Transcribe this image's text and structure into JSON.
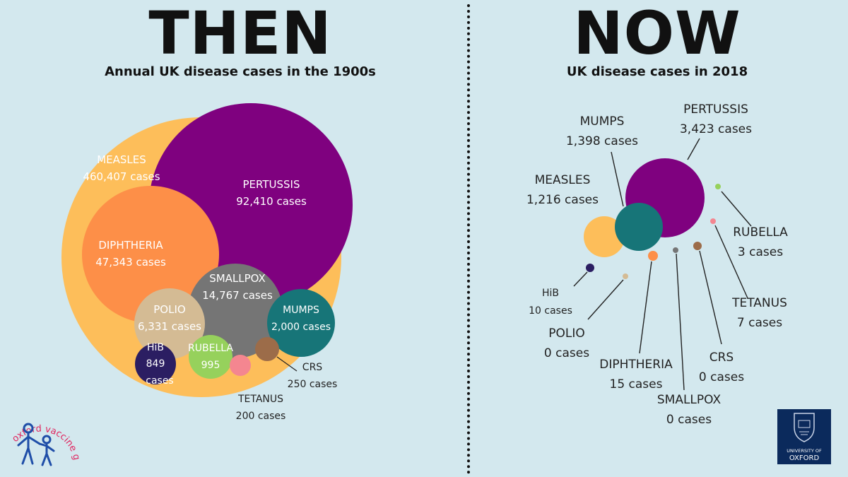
{
  "then": {
    "heading": "THEN",
    "subtitle": "Annual UK disease cases in the 1900s"
  },
  "now": {
    "heading": "NOW",
    "subtitle": "UK disease cases in 2018"
  },
  "logos": {
    "ovg_text": "oxford vaccine group",
    "oxford_line1": "UNIVERSITY OF",
    "oxford_line2": "OXFORD"
  },
  "colors": {
    "background": "#d3e8ee",
    "measles": "#fdbe5a",
    "pertussis": "#7f017f",
    "diphtheria": "#fd8f48",
    "smallpox": "#757575",
    "polio": "#d4bb94",
    "mumps": "#177578",
    "hib": "#2b1e62",
    "rubella": "#96d15c",
    "tetanus": "#f48690",
    "crs": "#9c6c49"
  },
  "chart_data": [
    {
      "type": "bubble",
      "title": "Annual UK disease cases in the 1900s",
      "unit": "cases",
      "series": [
        {
          "name": "MEASLES",
          "value": 460407,
          "label": "460,407 cases"
        },
        {
          "name": "PERTUSSIS",
          "value": 92410,
          "label": "92,410 cases"
        },
        {
          "name": "DIPHTHERIA",
          "value": 47343,
          "label": "47,343 cases"
        },
        {
          "name": "SMALLPOX",
          "value": 14767,
          "label": "14,767 cases"
        },
        {
          "name": "POLIO",
          "value": 6331,
          "label": "6,331 cases"
        },
        {
          "name": "MUMPS",
          "value": 2000,
          "label": "2,000 cases"
        },
        {
          "name": "RUBELLA",
          "value": 995,
          "label": "995"
        },
        {
          "name": "HiB",
          "value": 849,
          "label": "849",
          "label2": "cases"
        },
        {
          "name": "CRS",
          "value": 250,
          "label": "250 cases"
        },
        {
          "name": "TETANUS",
          "value": 200,
          "label": "200 cases"
        }
      ]
    },
    {
      "type": "bubble",
      "title": "UK disease cases in 2018",
      "unit": "cases",
      "series": [
        {
          "name": "PERTUSSIS",
          "value": 3423,
          "label": "3,423 cases"
        },
        {
          "name": "MUMPS",
          "value": 1398,
          "label": "1,398 cases"
        },
        {
          "name": "MEASLES",
          "value": 1216,
          "label": "1,216 cases"
        },
        {
          "name": "RUBELLA",
          "value": 3,
          "label": "3 cases"
        },
        {
          "name": "TETANUS",
          "value": 7,
          "label": "7 cases"
        },
        {
          "name": "HiB",
          "value": 10,
          "label": "10 cases"
        },
        {
          "name": "POLIO",
          "value": 0,
          "label": "0 cases"
        },
        {
          "name": "DIPHTHERIA",
          "value": 15,
          "label": "15 cases"
        },
        {
          "name": "SMALLPOX",
          "value": 0,
          "label": "0 cases"
        },
        {
          "name": "CRS",
          "value": 0,
          "label": "0 cases"
        }
      ]
    }
  ]
}
